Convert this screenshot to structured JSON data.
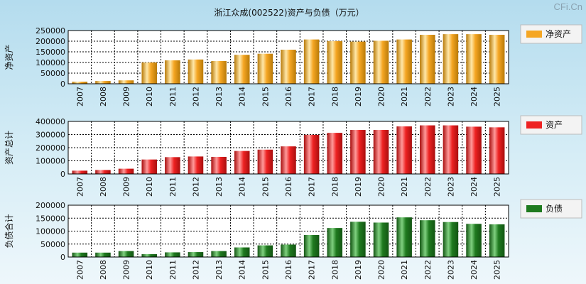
{
  "title": "浙江众成(002522)资产与负债（万元）",
  "watermark": "CFi.Cn",
  "colors": {
    "net_assets": "#f5a623",
    "assets": "#ee2222",
    "liabilities": "#1f7a1f",
    "grid": "#000000"
  },
  "chart_data": [
    {
      "type": "bar",
      "ylabel": "净资产",
      "legend": "净资产",
      "ylim": [
        0,
        250000
      ],
      "yticks": [
        "0",
        "50000",
        "100000",
        "150000",
        "200000",
        "250000"
      ],
      "categories": [
        "2007",
        "2008",
        "2009",
        "2010",
        "2011",
        "2012",
        "2013",
        "2014",
        "2015",
        "2016",
        "2017",
        "2018",
        "2019",
        "2020",
        "2021",
        "2022",
        "2023",
        "2024",
        "2025"
      ],
      "values": [
        10000,
        13000,
        16000,
        100000,
        110000,
        114000,
        107000,
        136000,
        141000,
        160000,
        208000,
        200000,
        198000,
        202000,
        208000,
        230000,
        233000,
        233000,
        230000
      ]
    },
    {
      "type": "bar",
      "ylabel": "资产总计",
      "legend": "资产",
      "ylim": [
        0,
        400000
      ],
      "yticks": [
        "0",
        "100000",
        "200000",
        "300000",
        "400000"
      ],
      "categories": [
        "2007",
        "2008",
        "2009",
        "2010",
        "2011",
        "2012",
        "2013",
        "2014",
        "2015",
        "2016",
        "2017",
        "2018",
        "2019",
        "2020",
        "2021",
        "2022",
        "2023",
        "2024",
        "2025"
      ],
      "values": [
        25000,
        30000,
        40000,
        110000,
        128000,
        133000,
        130000,
        175000,
        185000,
        210000,
        298000,
        313000,
        335000,
        335000,
        362000,
        370000,
        370000,
        360000,
        355000
      ]
    },
    {
      "type": "bar",
      "ylabel": "负债合计",
      "legend": "负债",
      "ylim": [
        0,
        200000
      ],
      "yticks": [
        "0",
        "50000",
        "100000",
        "150000",
        "200000"
      ],
      "categories": [
        "2007",
        "2008",
        "2009",
        "2010",
        "2011",
        "2012",
        "2013",
        "2014",
        "2015",
        "2016",
        "2017",
        "2018",
        "2019",
        "2020",
        "2021",
        "2022",
        "2023",
        "2024",
        "2025"
      ],
      "values": [
        17000,
        17000,
        23000,
        11000,
        18000,
        19000,
        23000,
        37000,
        45000,
        48000,
        85000,
        112000,
        136000,
        133000,
        153000,
        142000,
        135000,
        128000,
        126000
      ]
    }
  ]
}
